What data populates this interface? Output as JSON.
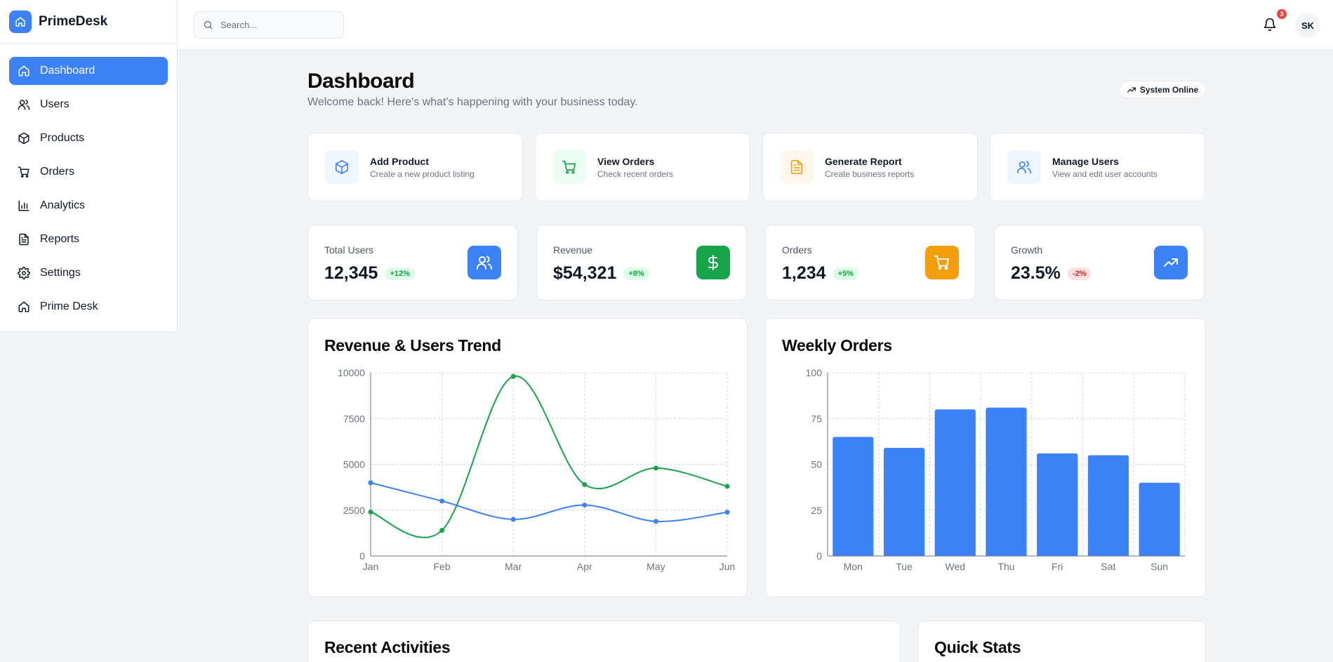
{
  "brand": {
    "name": "PrimeDesk"
  },
  "sidebar": {
    "items": [
      {
        "key": "dashboard",
        "label": "Dashboard",
        "icon": "home-icon",
        "active": true
      },
      {
        "key": "users",
        "label": "Users",
        "icon": "users-icon",
        "active": false
      },
      {
        "key": "products",
        "label": "Products",
        "icon": "box-icon",
        "active": false
      },
      {
        "key": "orders",
        "label": "Orders",
        "icon": "cart-icon",
        "active": false
      },
      {
        "key": "analytics",
        "label": "Analytics",
        "icon": "bar-chart-icon",
        "active": false
      },
      {
        "key": "reports",
        "label": "Reports",
        "icon": "file-report-icon",
        "active": false
      },
      {
        "key": "settings",
        "label": "Settings",
        "icon": "gear-icon",
        "active": false
      },
      {
        "key": "prime-desk",
        "label": "Prime Desk",
        "icon": "home-icon",
        "active": false
      }
    ]
  },
  "header": {
    "search": {
      "placeholder": "Search..."
    },
    "notifications": {
      "count": "3"
    },
    "avatar_initials": "SK"
  },
  "page": {
    "title": "Dashboard",
    "subtitle": "Welcome back! Here's what's happening with your business today.",
    "status": "System Online"
  },
  "quick_actions": [
    {
      "title": "Add Product",
      "desc": "Create a new product listing",
      "icon": "box-icon",
      "color": "#3b82f6",
      "bg": "#eff6ff"
    },
    {
      "title": "View Orders",
      "desc": "Check recent orders",
      "icon": "cart-icon",
      "color": "#16a34a",
      "bg": "#ecfdf3"
    },
    {
      "title": "Generate Report",
      "desc": "Create business reports",
      "icon": "file-report-icon",
      "color": "#f59e0b",
      "bg": "#fff7ed"
    },
    {
      "title": "Manage Users",
      "desc": "View and edit user accounts",
      "icon": "users-icon",
      "color": "#3b82f6",
      "bg": "#eff6ff"
    }
  ],
  "stats": [
    {
      "label": "Total Users",
      "value": "12,345",
      "change": "+12%",
      "trend": "up",
      "icon": "users-icon",
      "color": "#3b82f6"
    },
    {
      "label": "Revenue",
      "value": "$54,321",
      "change": "+8%",
      "trend": "up",
      "icon": "dollar-icon",
      "color": "#16a34a"
    },
    {
      "label": "Orders",
      "value": "1,234",
      "change": "+5%",
      "trend": "up",
      "icon": "cart-icon",
      "color": "#f59e0b"
    },
    {
      "label": "Growth",
      "value": "23.5%",
      "change": "-2%",
      "trend": "down",
      "icon": "trending-up-icon",
      "color": "#3b82f6"
    }
  ],
  "chart_data": [
    {
      "type": "line",
      "title": "Revenue & Users Trend",
      "categories": [
        "Jan",
        "Feb",
        "Mar",
        "Apr",
        "May",
        "Jun"
      ],
      "series": [
        {
          "values": [
            2400,
            1400,
            9800,
            3900,
            4800,
            3800
          ],
          "color": "#16a34a"
        },
        {
          "values": [
            4000,
            3000,
            2000,
            2780,
            1890,
            2390
          ],
          "color": "#3b82f6"
        }
      ],
      "yticks": [
        0,
        2500,
        5000,
        7500,
        10000
      ],
      "ylim": [
        0,
        10000
      ],
      "grid": true
    },
    {
      "type": "bar",
      "title": "Weekly Orders",
      "categories": [
        "Mon",
        "Tue",
        "Wed",
        "Thu",
        "Fri",
        "Sat",
        "Sun"
      ],
      "values": [
        65,
        59,
        80,
        81,
        56,
        55,
        40
      ],
      "color": "#3b82f6",
      "yticks": [
        0,
        25,
        50,
        75,
        100
      ],
      "ylim": [
        0,
        100
      ],
      "grid": true
    }
  ],
  "bottom": {
    "recent_title": "Recent Activities",
    "quick_stats_title": "Quick Stats"
  }
}
